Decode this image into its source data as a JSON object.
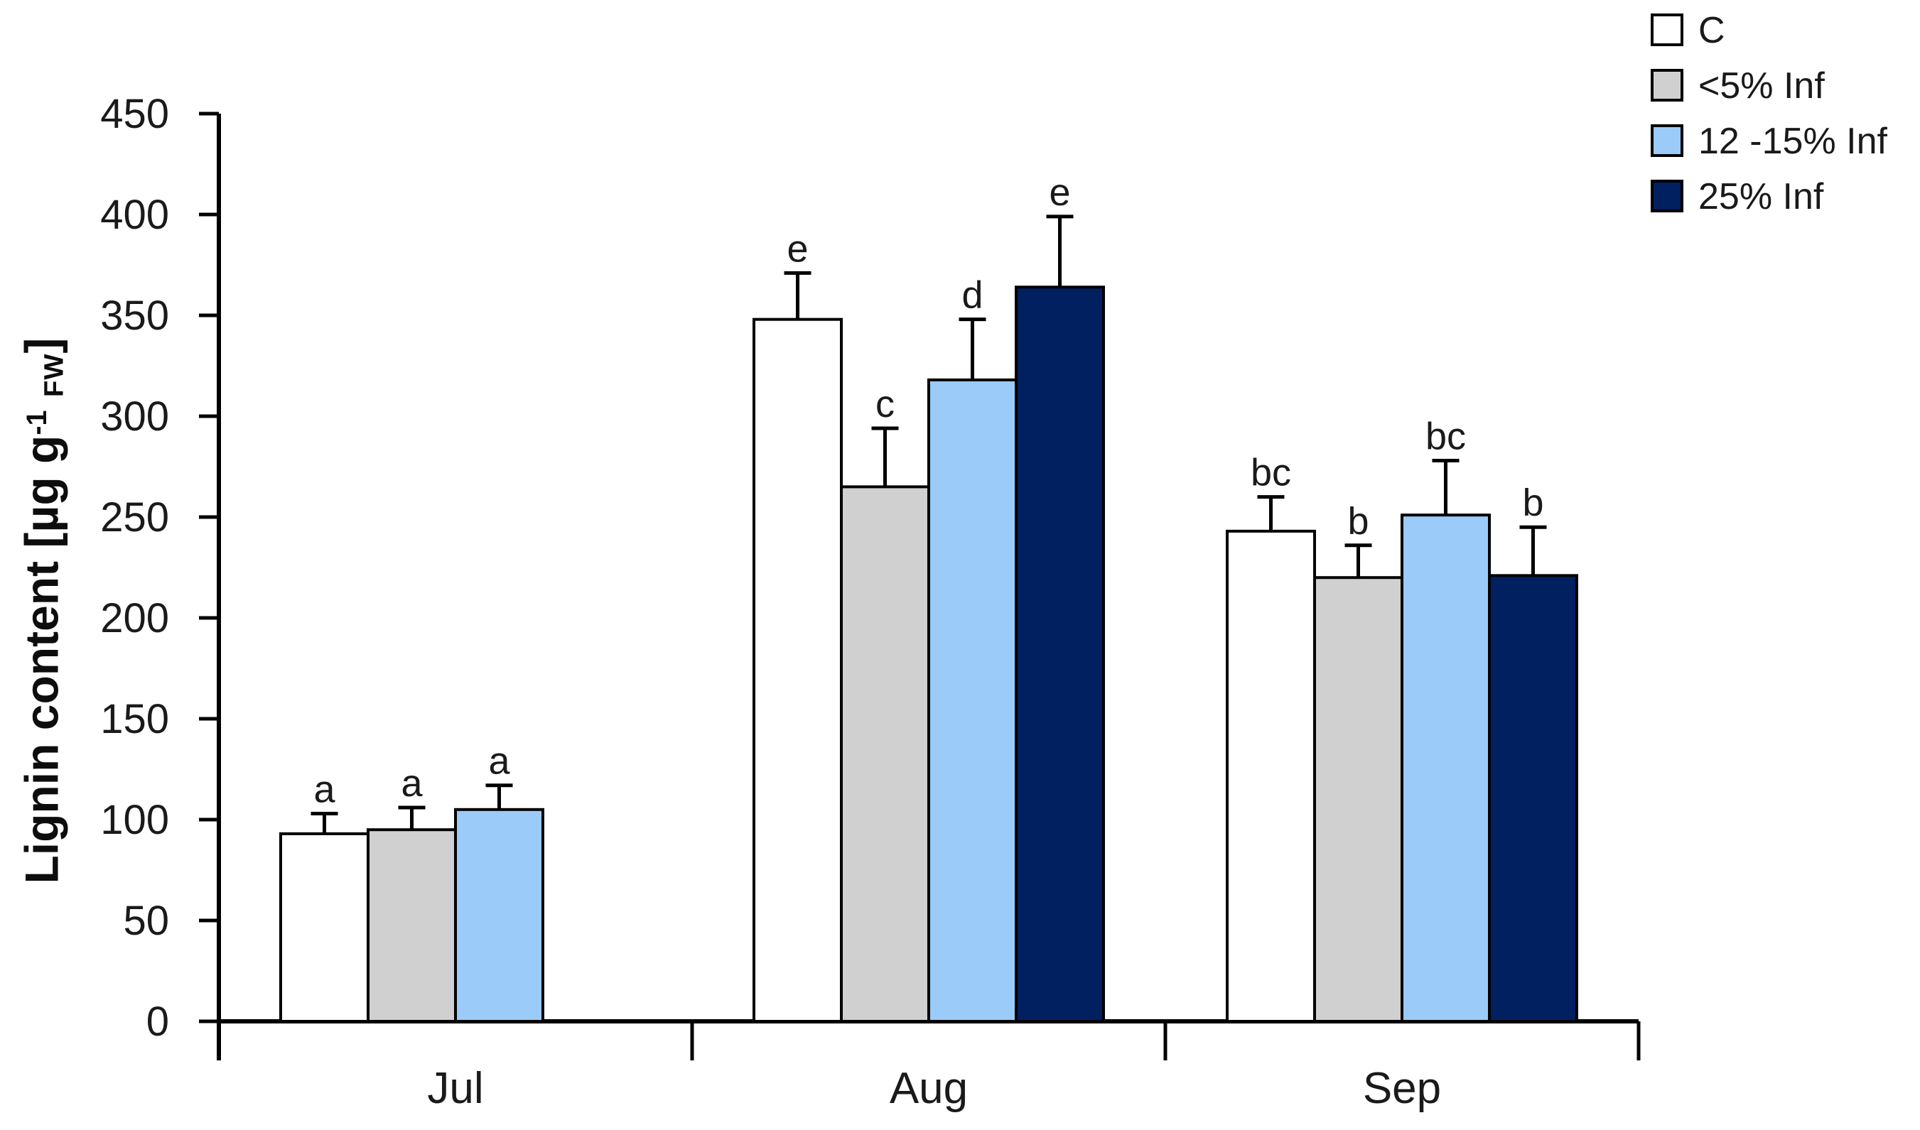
{
  "chart_data": {
    "type": "bar",
    "title": "",
    "categories": [
      "Jul",
      "Aug",
      "Sep"
    ],
    "series": [
      {
        "name": "C",
        "color": "#FFFFFF",
        "values": [
          93,
          348,
          243
        ],
        "errors": [
          10,
          23,
          17
        ],
        "sig_letters": [
          "a",
          "e",
          "bc"
        ]
      },
      {
        "name": "<5% Inf",
        "color": "#D0D0D0",
        "values": [
          95,
          265,
          220
        ],
        "errors": [
          11,
          29,
          16
        ],
        "sig_letters": [
          "a",
          "c",
          "b"
        ]
      },
      {
        "name": "12 -15% Inf",
        "color": "#9BCBF8",
        "values": [
          105,
          318,
          251
        ],
        "errors": [
          12,
          30,
          27
        ],
        "sig_letters": [
          "a",
          "d",
          "bc"
        ]
      },
      {
        "name": "25% Inf",
        "color": "#002060",
        "values": [
          null,
          364,
          221
        ],
        "errors": [
          null,
          35,
          24
        ],
        "sig_letters": [
          null,
          "e",
          "b"
        ]
      }
    ],
    "ylabel": {
      "prefix": "Lignin content [µg g",
      "superscript": "-1",
      "subscript": "FW",
      "suffix": "]"
    },
    "xlabel": "",
    "ylim": [
      0,
      450
    ],
    "yticks": [
      0,
      50,
      100,
      150,
      200,
      250,
      300,
      350,
      400,
      450
    ],
    "grid": false,
    "legend_position": "top-right",
    "error_bars": "upper",
    "bar_edge_color": "#000000",
    "axis_color": "#000000",
    "letter_color": "#262626",
    "background": "#FFFFFF"
  }
}
